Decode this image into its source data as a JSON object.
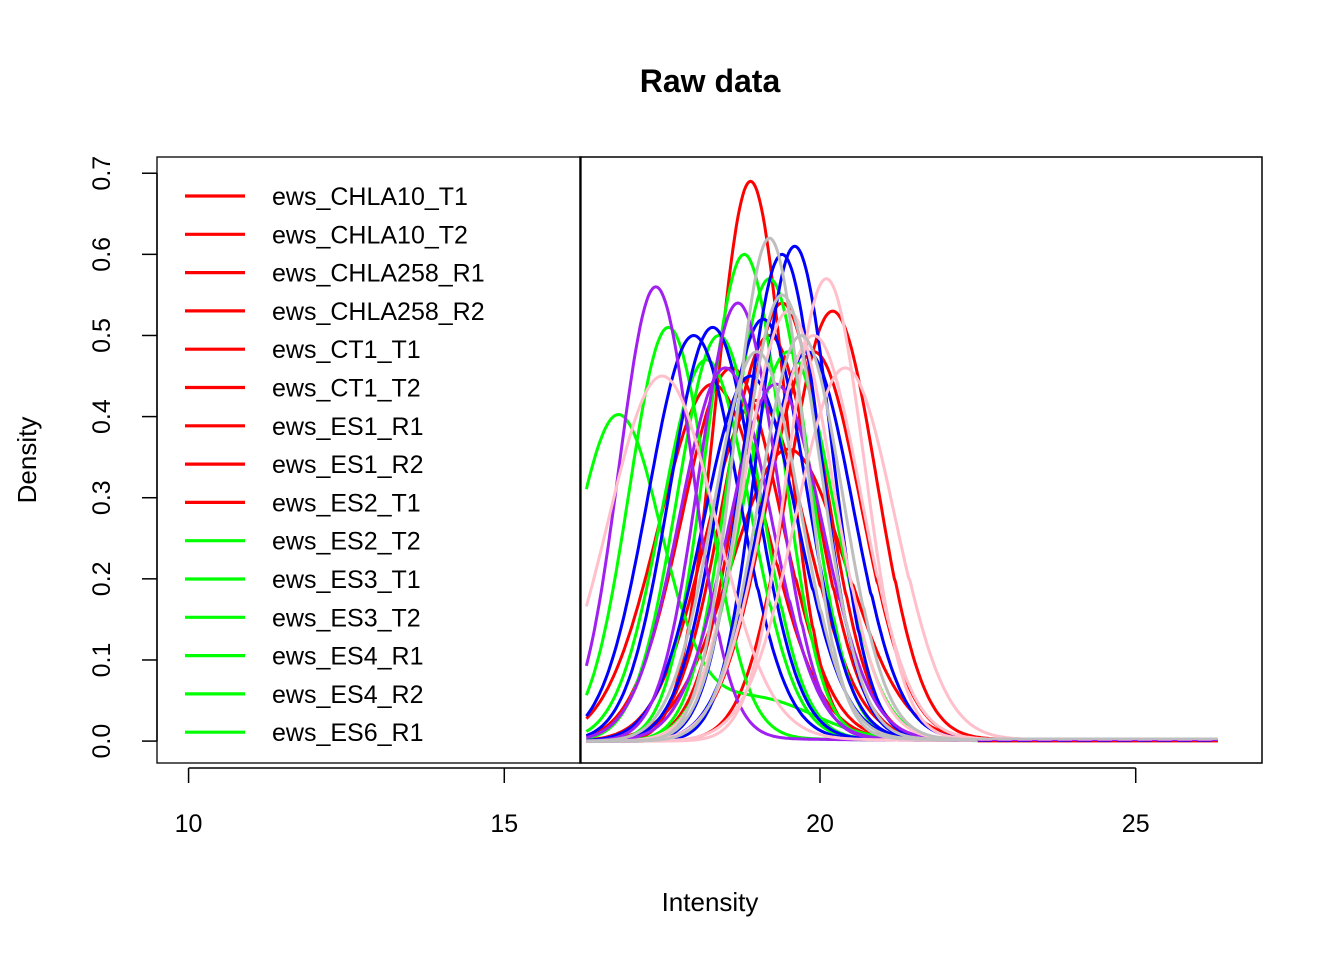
{
  "chart_data": {
    "type": "line",
    "title": "Raw data",
    "xlabel": "Intensity",
    "ylabel": "Density",
    "xlim": [
      9.5,
      27
    ],
    "ylim": [
      -0.027,
      0.72
    ],
    "x_ticks": [
      10,
      15,
      20,
      25
    ],
    "y_ticks": [
      0.0,
      0.1,
      0.2,
      0.3,
      0.4,
      0.5,
      0.6,
      0.7
    ],
    "x_tick_labels": [
      "10",
      "15",
      "20",
      "25"
    ],
    "y_tick_labels": [
      "0.0",
      "0.1",
      "0.2",
      "0.3",
      "0.4",
      "0.5",
      "0.6",
      "0.7"
    ],
    "grid": false,
    "legend_position": "top-left",
    "colors": {
      "red": "#ff0000",
      "green": "#00ff00",
      "blue": "#0000ff",
      "purple": "#a020f0",
      "pink": "#ffc0cb",
      "gray": "#bebebe"
    },
    "legend": [
      {
        "name": "ews_CHLA10_T1",
        "color": "#ff0000"
      },
      {
        "name": "ews_CHLA10_T2",
        "color": "#ff0000"
      },
      {
        "name": "ews_CHLA258_R1",
        "color": "#ff0000"
      },
      {
        "name": "ews_CHLA258_R2",
        "color": "#ff0000"
      },
      {
        "name": "ews_CT1_T1",
        "color": "#ff0000"
      },
      {
        "name": "ews_CT1_T2",
        "color": "#ff0000"
      },
      {
        "name": "ews_ES1_R1",
        "color": "#ff0000"
      },
      {
        "name": "ews_ES1_R2",
        "color": "#ff0000"
      },
      {
        "name": "ews_ES2_T1",
        "color": "#ff0000"
      },
      {
        "name": "ews_ES2_T2",
        "color": "#00ff00"
      },
      {
        "name": "ews_ES3_T1",
        "color": "#00ff00"
      },
      {
        "name": "ews_ES3_T2",
        "color": "#00ff00"
      },
      {
        "name": "ews_ES4_R1",
        "color": "#00ff00"
      },
      {
        "name": "ews_ES4_R2",
        "color": "#00ff00"
      },
      {
        "name": "ews_ES6_R1",
        "color": "#00ff00"
      }
    ],
    "series": [
      {
        "color": "#ff0000",
        "peaks": [
          [
            18.9,
            0.69,
            0.55
          ]
        ]
      },
      {
        "color": "#ff0000",
        "peaks": [
          [
            20.2,
            0.53,
            0.7
          ]
        ]
      },
      {
        "color": "#ff0000",
        "peaks": [
          [
            19.4,
            0.54,
            0.68
          ]
        ]
      },
      {
        "color": "#ff0000",
        "peaks": [
          [
            19.2,
            0.5,
            0.72
          ]
        ]
      },
      {
        "color": "#ff0000",
        "peaks": [
          [
            18.6,
            0.46,
            0.78
          ]
        ]
      },
      {
        "color": "#ff0000",
        "peaks": [
          [
            19.0,
            0.42,
            0.8
          ]
        ]
      },
      {
        "color": "#ff0000",
        "peaks": [
          [
            19.5,
            0.36,
            0.9
          ]
        ]
      },
      {
        "color": "#ff0000",
        "peaks": [
          [
            18.3,
            0.44,
            0.85
          ]
        ]
      },
      {
        "color": "#ff0000",
        "peaks": [
          [
            19.9,
            0.48,
            0.75
          ]
        ]
      },
      {
        "color": "#00ff00",
        "peaks": [
          [
            16.8,
            0.4,
            0.7
          ],
          [
            19.0,
            0.05,
            0.9
          ]
        ]
      },
      {
        "color": "#00ff00",
        "peaks": [
          [
            17.6,
            0.51,
            0.62
          ]
        ]
      },
      {
        "color": "#00ff00",
        "peaks": [
          [
            18.8,
            0.6,
            0.6
          ]
        ]
      },
      {
        "color": "#00ff00",
        "peaks": [
          [
            18.2,
            0.47,
            0.7
          ]
        ]
      },
      {
        "color": "#00ff00",
        "peaks": [
          [
            19.2,
            0.57,
            0.62
          ]
        ]
      },
      {
        "color": "#00ff00",
        "peaks": [
          [
            18.4,
            0.5,
            0.66
          ]
        ]
      },
      {
        "color": "#00ff00",
        "peaks": [
          [
            19.5,
            0.48,
            0.72
          ]
        ]
      },
      {
        "color": "#0000ff",
        "peaks": [
          [
            18.0,
            0.5,
            0.72
          ]
        ]
      },
      {
        "color": "#0000ff",
        "peaks": [
          [
            18.3,
            0.51,
            0.68
          ]
        ]
      },
      {
        "color": "#0000ff",
        "peaks": [
          [
            19.6,
            0.61,
            0.58
          ]
        ]
      },
      {
        "color": "#0000ff",
        "peaks": [
          [
            19.4,
            0.6,
            0.6
          ]
        ]
      },
      {
        "color": "#0000ff",
        "peaks": [
          [
            19.1,
            0.52,
            0.68
          ]
        ]
      },
      {
        "color": "#0000ff",
        "peaks": [
          [
            18.9,
            0.45,
            0.74
          ]
        ]
      },
      {
        "color": "#0000ff",
        "peaks": [
          [
            19.8,
            0.48,
            0.72
          ]
        ]
      },
      {
        "color": "#a020f0",
        "peaks": [
          [
            17.4,
            0.56,
            0.58
          ]
        ]
      },
      {
        "color": "#a020f0",
        "peaks": [
          [
            18.7,
            0.54,
            0.62
          ]
        ]
      },
      {
        "color": "#a020f0",
        "peaks": [
          [
            18.5,
            0.46,
            0.72
          ]
        ]
      },
      {
        "color": "#a020f0",
        "peaks": [
          [
            19.3,
            0.44,
            0.74
          ]
        ]
      },
      {
        "color": "#ffc0cb",
        "peaks": [
          [
            20.1,
            0.57,
            0.6
          ]
        ]
      },
      {
        "color": "#ffc0cb",
        "peaks": [
          [
            19.5,
            0.53,
            0.7
          ]
        ]
      },
      {
        "color": "#ffc0cb",
        "peaks": [
          [
            17.5,
            0.45,
            0.85
          ]
        ]
      },
      {
        "color": "#ffc0cb",
        "peaks": [
          [
            20.4,
            0.46,
            0.78
          ]
        ]
      },
      {
        "color": "#ffc0cb",
        "peaks": [
          [
            19.9,
            0.5,
            0.75
          ]
        ]
      },
      {
        "color": "#bebebe",
        "peaks": [
          [
            19.2,
            0.62,
            0.55
          ]
        ]
      },
      {
        "color": "#bebebe",
        "peaks": [
          [
            19.4,
            0.55,
            0.62
          ]
        ]
      },
      {
        "color": "#bebebe",
        "peaks": [
          [
            19.7,
            0.5,
            0.66
          ]
        ]
      },
      {
        "color": "#bebebe",
        "peaks": [
          [
            19.0,
            0.48,
            0.68
          ]
        ]
      }
    ],
    "tail_end": 26.3,
    "tail_colors": [
      "#ff0000",
      "#0000ff",
      "#a020f0",
      "#ffc0cb",
      "#bebebe"
    ]
  }
}
